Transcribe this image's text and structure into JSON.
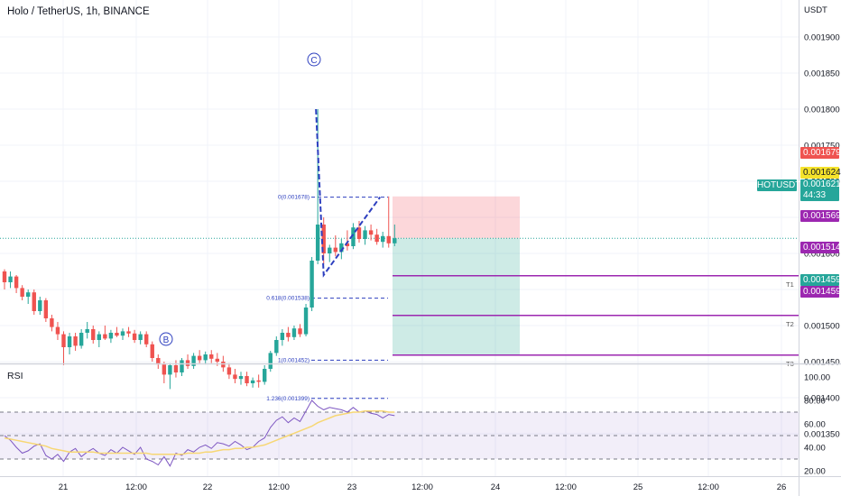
{
  "header": {
    "title": "Holo / TetherUS, 1h, BINANCE"
  },
  "axis": {
    "currency": "USDT"
  },
  "rsi_panel": {
    "label": "RSI",
    "ticks": [
      "100.00",
      "80.00",
      "60.00",
      "40.00",
      "20.00"
    ]
  },
  "price_tags": {
    "stop": {
      "value": "0.001679",
      "color": "#ef5350"
    },
    "last_close": {
      "value": "0.001624",
      "color": "#f5e32b"
    },
    "current": {
      "value": "0.001621",
      "countdown": "44:33",
      "color": "#26a69a"
    },
    "t1": {
      "value": "0.001569",
      "color": "#9c27b0"
    },
    "t2": {
      "value": "0.001514",
      "color": "#9c27b0"
    },
    "t3a": {
      "value": "0.001459",
      "color": "#26a69a"
    },
    "t3b": {
      "value": "0.001459",
      "color": "#9c27b0"
    }
  },
  "symbol_tag": "HOTUSDT",
  "target_labels": [
    "T1",
    "T2",
    "T3"
  ],
  "wave_labels": [
    "C",
    "B"
  ],
  "fib_labels": [
    "0(0.001678)",
    "0.618(0.001538)",
    "1(0.001452)",
    "1.236(0.001399)"
  ],
  "chart_data": {
    "type": "candlestick",
    "title": "Holo / TetherUS, 1h, BINANCE",
    "y_unit": "USDT",
    "ylim": [
      0.001318,
      0.001928
    ],
    "y_ticks": [
      "0.001900",
      "0.001850",
      "0.001800",
      "0.001750",
      "0.001700",
      "0.001650",
      "0.001600",
      "0.001550",
      "0.001500",
      "0.001450",
      "0.001400",
      "0.001350"
    ],
    "x_ticks": [
      "21",
      "12:00",
      "22",
      "12:00",
      "23",
      "12:00",
      "24",
      "12:00",
      "25",
      "12:00",
      "26"
    ],
    "ohlc": [
      [
        0.001575,
        0.001578,
        0.00155,
        0.00156
      ],
      [
        0.00156,
        0.001575,
        0.001552,
        0.001568
      ],
      [
        0.001568,
        0.00157,
        0.001545,
        0.001552
      ],
      [
        0.001552,
        0.001556,
        0.001535,
        0.00154
      ],
      [
        0.00154,
        0.00155,
        0.00153,
        0.001546
      ],
      [
        0.001546,
        0.00155,
        0.001515,
        0.00152
      ],
      [
        0.00152,
        0.00154,
        0.001515,
        0.001535
      ],
      [
        0.001535,
        0.001538,
        0.001505,
        0.00151
      ],
      [
        0.00151,
        0.001515,
        0.001492,
        0.001498
      ],
      [
        0.001498,
        0.001505,
        0.00148,
        0.001488
      ],
      [
        0.001488,
        0.001492,
        0.001445,
        0.00147
      ],
      [
        0.00147,
        0.00149,
        0.00146,
        0.001485
      ],
      [
        0.001485,
        0.00149,
        0.001465,
        0.001472
      ],
      [
        0.001472,
        0.001495,
        0.001468,
        0.00149
      ],
      [
        0.00149,
        0.001505,
        0.001482,
        0.001495
      ],
      [
        0.001495,
        0.0015,
        0.001475,
        0.00148
      ],
      [
        0.00148,
        0.001492,
        0.00147,
        0.001488
      ],
      [
        0.001488,
        0.0015,
        0.00148,
        0.001482
      ],
      [
        0.001482,
        0.001494,
        0.001476,
        0.00149
      ],
      [
        0.00149,
        0.001498,
        0.001484,
        0.001486
      ],
      [
        0.001486,
        0.001496,
        0.00148,
        0.001492
      ],
      [
        0.001492,
        0.001498,
        0.001484,
        0.001489
      ],
      [
        0.001489,
        0.001494,
        0.001476,
        0.00148
      ],
      [
        0.00148,
        0.001492,
        0.001474,
        0.001488
      ],
      [
        0.001488,
        0.001492,
        0.00147,
        0.001474
      ],
      [
        0.001474,
        0.001478,
        0.00145,
        0.001455
      ],
      [
        0.001455,
        0.00146,
        0.00144,
        0.001446
      ],
      [
        0.001446,
        0.00145,
        0.00142,
        0.001432
      ],
      [
        0.001432,
        0.001448,
        0.001412,
        0.001445
      ],
      [
        0.001445,
        0.001452,
        0.001428,
        0.001435
      ],
      [
        0.001435,
        0.001455,
        0.00143,
        0.001452
      ],
      [
        0.001452,
        0.00146,
        0.00144,
        0.001444
      ],
      [
        0.001444,
        0.001462,
        0.00144,
        0.001458
      ],
      [
        0.001458,
        0.001466,
        0.001448,
        0.001452
      ],
      [
        0.001452,
        0.001464,
        0.001446,
        0.00146
      ],
      [
        0.00146,
        0.001466,
        0.001448,
        0.001454
      ],
      [
        0.001454,
        0.001462,
        0.001444,
        0.00145
      ],
      [
        0.00145,
        0.001458,
        0.001436,
        0.001442
      ],
      [
        0.001442,
        0.001448,
        0.001426,
        0.001432
      ],
      [
        0.001432,
        0.00144,
        0.00142,
        0.001426
      ],
      [
        0.001426,
        0.001436,
        0.001418,
        0.00143
      ],
      [
        0.00143,
        0.001436,
        0.001416,
        0.00142
      ],
      [
        0.00142,
        0.001428,
        0.001414,
        0.001424
      ],
      [
        0.001424,
        0.001432,
        0.001414,
        0.001422
      ],
      [
        0.001422,
        0.001445,
        0.001418,
        0.00144
      ],
      [
        0.00144,
        0.001465,
        0.001436,
        0.001462
      ],
      [
        0.001462,
        0.001485,
        0.001458,
        0.00148
      ],
      [
        0.00148,
        0.001495,
        0.001472,
        0.00149
      ],
      [
        0.00149,
        0.001498,
        0.001478,
        0.001484
      ],
      [
        0.001484,
        0.0015,
        0.00148,
        0.001496
      ],
      [
        0.001496,
        0.001502,
        0.001484,
        0.001488
      ],
      [
        0.001488,
        0.00153,
        0.001485,
        0.001525
      ],
      [
        0.001525,
        0.001595,
        0.00152,
        0.00159
      ],
      [
        0.00159,
        0.0018,
        0.001585,
        0.00164
      ],
      [
        0.00164,
        0.00165,
        0.001585,
        0.0016
      ],
      [
        0.0016,
        0.001612,
        0.001588,
        0.001608
      ],
      [
        0.001608,
        0.001625,
        0.001596,
        0.001602
      ],
      [
        0.001602,
        0.00162,
        0.001592,
        0.001614
      ],
      [
        0.001614,
        0.001632,
        0.001604,
        0.00161
      ],
      [
        0.00161,
        0.001642,
        0.001606,
        0.001636
      ],
      [
        0.001636,
        0.001645,
        0.001615,
        0.00162
      ],
      [
        0.00162,
        0.001638,
        0.001612,
        0.001632
      ],
      [
        0.001632,
        0.00164,
        0.001618,
        0.001626
      ],
      [
        0.001626,
        0.001634,
        0.001612,
        0.001616
      ],
      [
        0.001616,
        0.00163,
        0.001608,
        0.001624
      ],
      [
        0.001624,
        0.001679,
        0.001608,
        0.001614
      ],
      [
        0.001614,
        0.00164,
        0.00161,
        0.001621
      ]
    ],
    "rsi": [
      50,
      46,
      40,
      35,
      37,
      41,
      43,
      33,
      30,
      34,
      28,
      36,
      39,
      32,
      36,
      39,
      35,
      33,
      38,
      35,
      40,
      37,
      34,
      40,
      30,
      28,
      25,
      32,
      24,
      35,
      33,
      38,
      36,
      40,
      42,
      39,
      44,
      43,
      41,
      45,
      42,
      38,
      40,
      45,
      48,
      57,
      63,
      66,
      61,
      65,
      62,
      71,
      80,
      75,
      72,
      74,
      73,
      72,
      70,
      74,
      70,
      71,
      69,
      68,
      65,
      68,
      67
    ],
    "rsi_ma": [
      48,
      47,
      46,
      45,
      44,
      43,
      42,
      41,
      39,
      38,
      37,
      36,
      36,
      36,
      36,
      36,
      35,
      35,
      35,
      35,
      35,
      35,
      35,
      35,
      35,
      34,
      34,
      34,
      34,
      34,
      34,
      35,
      35,
      35,
      36,
      36,
      37,
      38,
      38,
      39,
      39,
      40,
      40,
      41,
      42,
      44,
      46,
      48,
      50,
      52,
      54,
      56,
      58,
      61,
      63,
      65,
      67,
      68,
      69,
      70,
      70,
      71,
      71,
      71,
      71,
      70,
      70
    ],
    "fib_levels": [
      0.001678,
      0.001538,
      0.001452,
      0.001399
    ],
    "position": {
      "entry": 0.001621,
      "stop": 0.001679,
      "targets": [
        0.001569,
        0.001514,
        0.001459
      ]
    }
  }
}
